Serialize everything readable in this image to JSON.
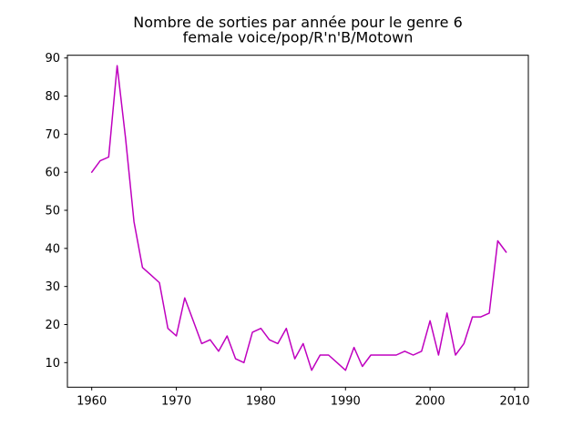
{
  "figure": {
    "title_line1": "Nombre de sorties par année pour le genre 6",
    "title_line2": "female voice/pop/R'n'B/Motown"
  },
  "chart_data": {
    "type": "line",
    "title": "Nombre de sorties par année pour le genre 6\nfemale voice/pop/R'n'B/Motown",
    "xlabel": "",
    "ylabel": "",
    "grid": false,
    "legend": null,
    "line_color": "#BF00BF",
    "background_color": "#ffffff",
    "axis_color": "#000000",
    "x": [
      1960,
      1961,
      1962,
      1963,
      1964,
      1965,
      1966,
      1967,
      1968,
      1969,
      1970,
      1971,
      1972,
      1973,
      1974,
      1975,
      1976,
      1977,
      1978,
      1979,
      1980,
      1981,
      1982,
      1983,
      1984,
      1985,
      1986,
      1987,
      1988,
      1989,
      1990,
      1991,
      1992,
      1993,
      1994,
      1995,
      1996,
      1997,
      1998,
      1999,
      2000,
      2001,
      2002,
      2003,
      2004,
      2005,
      2006,
      2007,
      2008,
      2009
    ],
    "values": [
      60,
      63,
      64,
      88,
      69,
      47,
      35,
      33,
      31,
      19,
      17,
      27,
      21,
      15,
      16,
      13,
      17,
      11,
      10,
      18,
      19,
      16,
      15,
      19,
      11,
      15,
      8,
      12,
      12,
      10,
      8,
      14,
      9,
      12,
      12,
      12,
      12,
      13,
      12,
      13,
      21,
      12,
      23,
      12,
      15,
      22,
      22,
      23,
      42,
      39
    ],
    "xticks": [
      1960,
      1970,
      1980,
      1990,
      2000,
      2010
    ],
    "yticks": [
      10,
      20,
      30,
      40,
      50,
      60,
      70,
      80,
      90
    ],
    "xlim": [
      1957.1,
      2011.6
    ],
    "ylim": [
      4,
      91
    ]
  }
}
